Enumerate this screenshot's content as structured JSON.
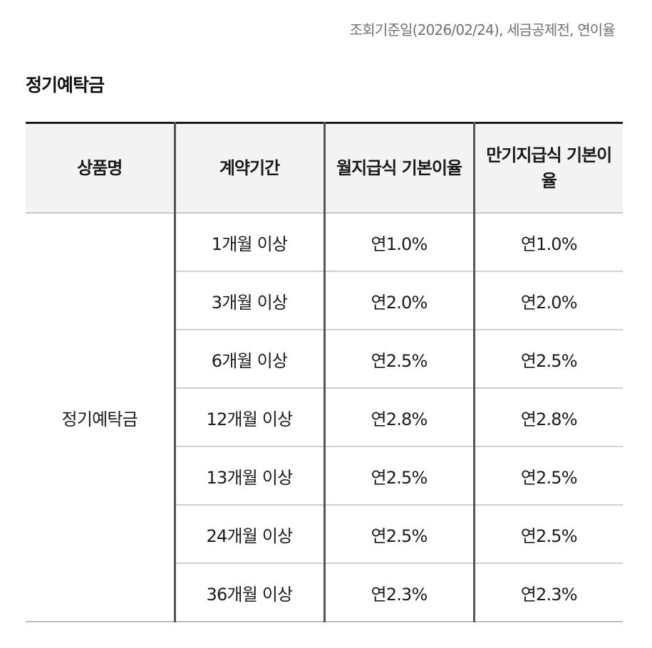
{
  "notice": "조회기준일(2026/02/24), 세금공제전, 연이율",
  "section_title": "정기예탁금",
  "table": {
    "headers": {
      "product": "상품명",
      "period": "계약기간",
      "monthly_rate": "월지급식 기본이율",
      "maturity_rate": "만기지급식 기본이율"
    },
    "product_name": "정기예탁금",
    "rows": [
      {
        "period": "1개월 이상",
        "monthly_rate": "연1.0%",
        "maturity_rate": "연1.0%"
      },
      {
        "period": "3개월 이상",
        "monthly_rate": "연2.0%",
        "maturity_rate": "연2.0%"
      },
      {
        "period": "6개월 이상",
        "monthly_rate": "연2.5%",
        "maturity_rate": "연2.5%"
      },
      {
        "period": "12개월 이상",
        "monthly_rate": "연2.8%",
        "maturity_rate": "연2.8%"
      },
      {
        "period": "13개월 이상",
        "monthly_rate": "연2.5%",
        "maturity_rate": "연2.5%"
      },
      {
        "period": "24개월 이상",
        "monthly_rate": "연2.5%",
        "maturity_rate": "연2.5%"
      },
      {
        "period": "36개월 이상",
        "monthly_rate": "연2.3%",
        "maturity_rate": "연2.3%"
      }
    ]
  },
  "colors": {
    "header_bg": "#f3f3f3",
    "top_rule": "#1a1a1a",
    "notice_text": "#707070"
  }
}
